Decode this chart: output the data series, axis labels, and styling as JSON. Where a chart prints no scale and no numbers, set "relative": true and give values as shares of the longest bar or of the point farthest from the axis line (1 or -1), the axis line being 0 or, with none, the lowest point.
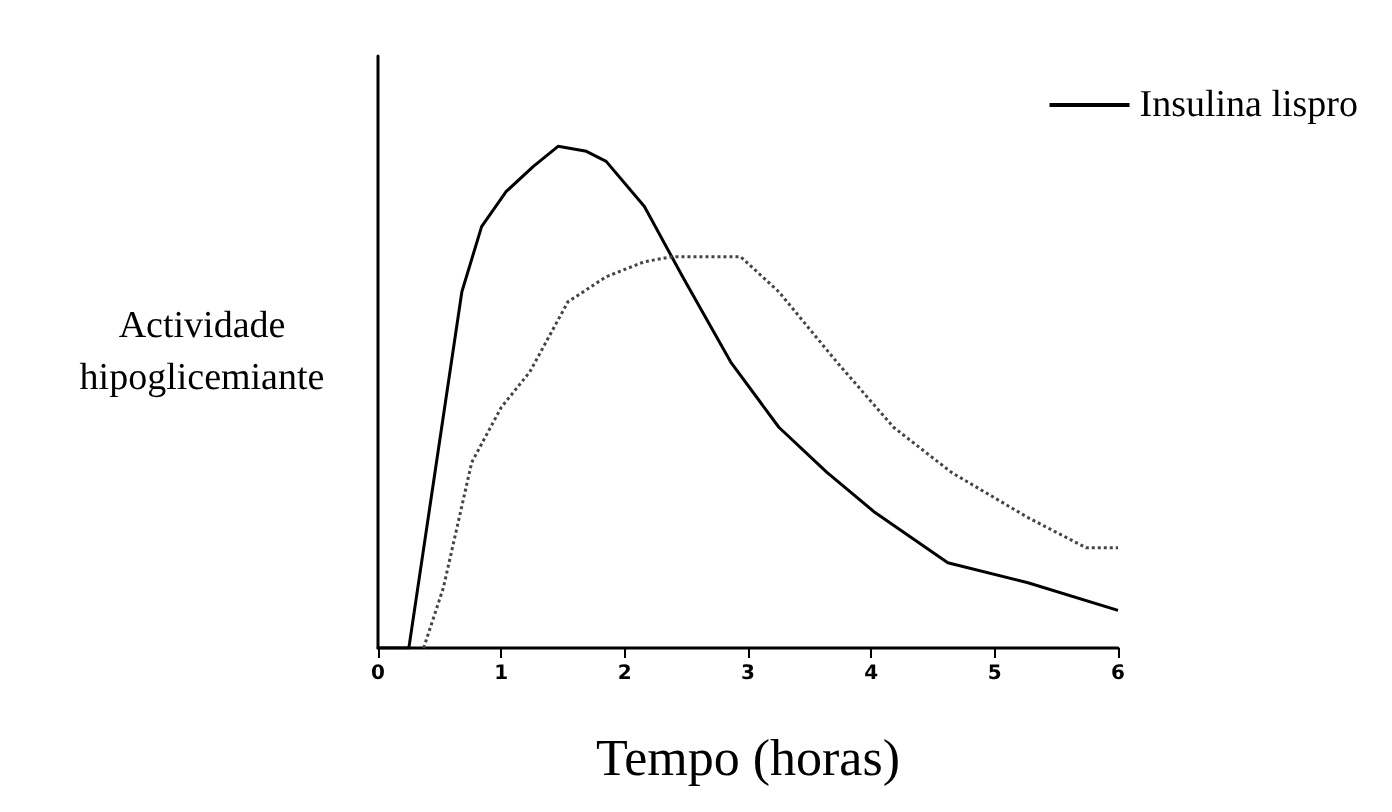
{
  "chart_data": {
    "type": "line",
    "xlabel": "Tempo (horas)",
    "ylabel": "Actividade\nhipoglicemiante",
    "relative": true,
    "xlim": [
      0,
      6
    ],
    "xticks": [
      0,
      1,
      2,
      3,
      4,
      5,
      6
    ],
    "grid": false,
    "legend": "top right",
    "marker": "none",
    "series": [
      {
        "name": "Insulina lispro",
        "color": "#000000",
        "line_style": "solid",
        "x": [
          0,
          0.25,
          0.68,
          0.84,
          1.04,
          1.26,
          1.46,
          1.69,
          1.85,
          2.16,
          2.47,
          2.86,
          3.25,
          3.64,
          4.03,
          4.62,
          5.27,
          6.0
        ],
        "values": [
          0,
          0,
          0.71,
          0.84,
          0.91,
          0.96,
          1.0,
          0.99,
          0.97,
          0.88,
          0.74,
          0.57,
          0.44,
          0.35,
          0.27,
          0.17,
          0.13,
          0.075
        ]
      },
      {
        "color": "#444444",
        "line_style": "dotted",
        "x": [
          0.37,
          0.53,
          0.76,
          1.0,
          1.23,
          1.54,
          1.85,
          2.16,
          2.39,
          2.94,
          3.25,
          3.72,
          4.18,
          4.65,
          5.27,
          5.74,
          6.0
        ],
        "values": [
          0,
          0.12,
          0.37,
          0.48,
          0.55,
          0.69,
          0.74,
          0.77,
          0.78,
          0.78,
          0.71,
          0.57,
          0.44,
          0.35,
          0.26,
          0.2,
          0.2
        ]
      }
    ]
  }
}
